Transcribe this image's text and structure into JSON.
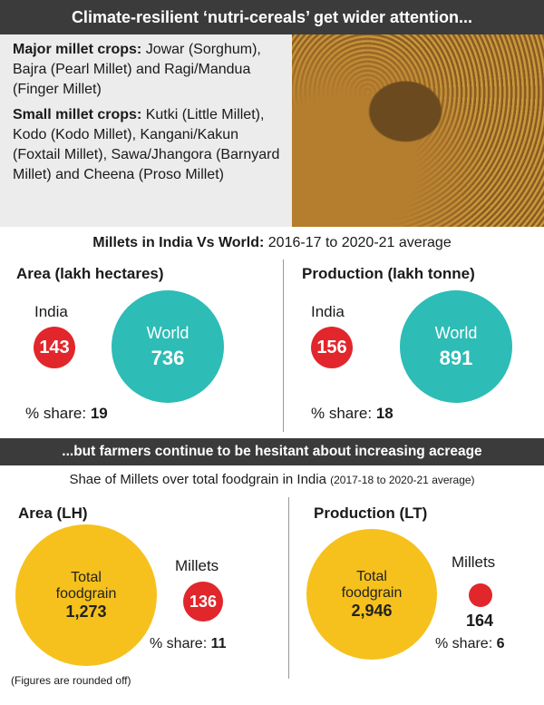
{
  "header": {
    "title": "Climate-resilient ‘nutri-cereals’ get wider attention..."
  },
  "crops": {
    "major": {
      "label": "Major millet crops:",
      "text": "Jowar (Sorghum), Bajra (Pearl Millet) and Ragi/Mandua (Finger Millet)"
    },
    "small": {
      "label": "Small millet crops:",
      "text": "Kutki (Little Millet), Kodo (Kodo Millet), Kangani/Kakun (Foxtail Millet), Sawa/Jhangora (Barnyard Millet) and Cheena (Proso Millet)"
    }
  },
  "section1": {
    "title_bold": "Millets in India Vs World:",
    "title_rest": "2016-17 to 2020-21 average",
    "area": {
      "title": "Area (lakh hectares)",
      "india_label": "India",
      "india": 143,
      "world_label": "World",
      "world": 736,
      "share_label": "% share:",
      "share": 19
    },
    "production": {
      "title": "Production (lakh tonne)",
      "india_label": "India",
      "india": 156,
      "world_label": "World",
      "world": 891,
      "share_label": "% share:",
      "share": 18
    }
  },
  "banner2": {
    "title": "...but farmers continue to be hesitant about increasing acreage"
  },
  "section2": {
    "title": "Shae of Millets over total foodgrain in India",
    "note": "(2017-18 to 2020-21 average)",
    "area": {
      "title": "Area (LH)",
      "total_label_1": "Total",
      "total_label_2": "foodgrain",
      "total": "1,273",
      "millets_label": "Millets",
      "millets": 136,
      "share_label": "% share:",
      "share": 11
    },
    "production": {
      "title": "Production (LT)",
      "total_label_1": "Total",
      "total_label_2": "foodgrain",
      "total": "2,946",
      "millets_label": "Millets",
      "millets": 164,
      "share_label": "% share:",
      "share": 6
    }
  },
  "footnote": "(Figures are rounded off)"
}
